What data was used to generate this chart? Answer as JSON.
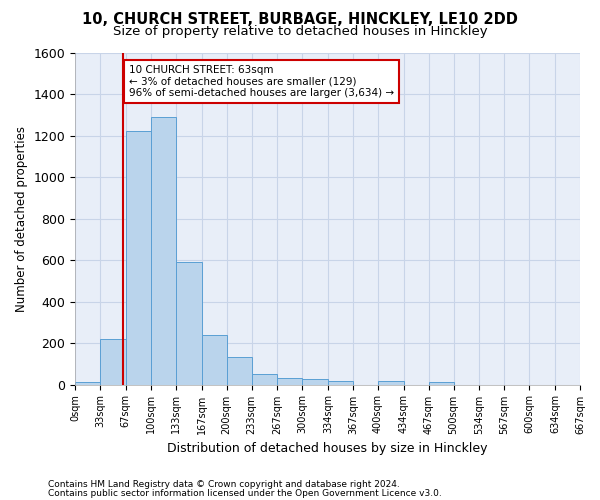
{
  "title1": "10, CHURCH STREET, BURBAGE, HINCKLEY, LE10 2DD",
  "title2": "Size of property relative to detached houses in Hinckley",
  "xlabel": "Distribution of detached houses by size in Hinckley",
  "ylabel": "Number of detached properties",
  "footer1": "Contains HM Land Registry data © Crown copyright and database right 2024.",
  "footer2": "Contains public sector information licensed under the Open Government Licence v3.0.",
  "bin_edges": [
    0,
    33,
    67,
    100,
    133,
    167,
    200,
    233,
    267,
    300,
    334,
    367,
    400,
    434,
    467,
    500,
    534,
    567,
    600,
    634,
    667
  ],
  "bar_heights": [
    10,
    220,
    1220,
    1290,
    590,
    240,
    135,
    50,
    30,
    25,
    15,
    0,
    15,
    0,
    12,
    0,
    0,
    0,
    0,
    0
  ],
  "bar_color": "#bad4ec",
  "bar_edge_color": "#5a9fd4",
  "grid_color": "#c8d4e8",
  "background_color": "#e8eef8",
  "subject_x": 63,
  "subject_label": "10 CHURCH STREET: 63sqm",
  "annotation_line1": "← 3% of detached houses are smaller (129)",
  "annotation_line2": "96% of semi-detached houses are larger (3,634) →",
  "annotation_box_color": "#ffffff",
  "annotation_box_edge": "#cc0000",
  "vline_color": "#cc0000",
  "ylim": [
    0,
    1600
  ],
  "xlim": [
    0,
    667
  ],
  "title1_fontsize": 10.5,
  "title2_fontsize": 9.5,
  "xlabel_fontsize": 9,
  "ylabel_fontsize": 8.5,
  "ytick_fontsize": 9,
  "xtick_fontsize": 7,
  "footer_fontsize": 6.5,
  "annot_fontsize": 7.5
}
